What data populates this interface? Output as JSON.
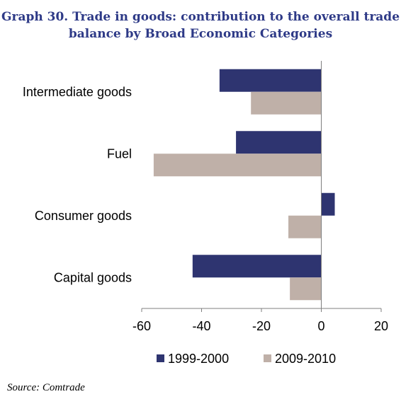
{
  "title_lines": [
    "Graph 30. Trade in goods: contribution to the overall trade",
    "balance by Broad Economic Categories"
  ],
  "source": "Source: Comtrade",
  "chart_data": {
    "type": "bar",
    "orientation": "horizontal",
    "categories": [
      "Intermediate goods",
      "Fuel",
      "Consumer goods",
      "Capital goods"
    ],
    "series": [
      {
        "name": "1999-2000",
        "color": "#2E3470",
        "values": [
          -34,
          -28.5,
          4.5,
          -43
        ]
      },
      {
        "name": "2009-2010",
        "color": "#BFB0A8",
        "values": [
          -23.5,
          -56,
          -11,
          -10.5
        ]
      }
    ],
    "xlim": [
      -60,
      20
    ],
    "xticks": [
      -60,
      -40,
      -20,
      0,
      20
    ],
    "legend_position": "bottom",
    "grid": false
  }
}
